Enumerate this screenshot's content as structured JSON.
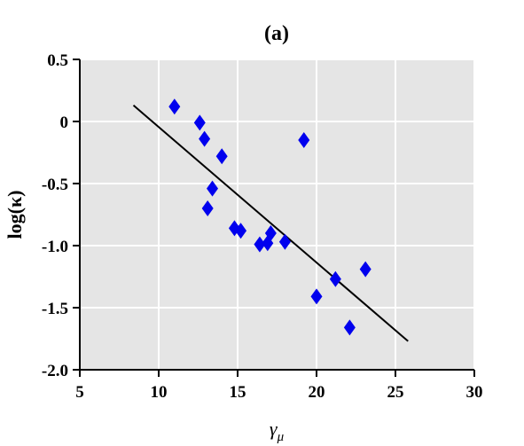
{
  "chart_data": {
    "type": "scatter",
    "title": "(a)",
    "xlabel": "γμ",
    "xlabel_main": "γ",
    "xlabel_sub": "μ",
    "ylabel": "log(κ)",
    "xlim": [
      5,
      30
    ],
    "ylim": [
      -2.0,
      0.5
    ],
    "x_ticks": [
      5,
      10,
      15,
      20,
      25,
      30
    ],
    "x_tick_labels": [
      "5",
      "10",
      "15",
      "20",
      "25",
      "30"
    ],
    "y_ticks": [
      0.5,
      0,
      -0.5,
      -1.0,
      -1.5,
      -2.0
    ],
    "y_tick_labels": [
      "0.5",
      "0",
      "-0.5",
      "-1.0",
      "-1.5",
      "-2.0"
    ],
    "grid": true,
    "background_color": "#e5e5e5",
    "grid_color": "#ffffff",
    "marker": "diamond",
    "marker_color": "#0000ee",
    "points": [
      {
        "x": 11.0,
        "y": 0.12
      },
      {
        "x": 12.6,
        "y": -0.01
      },
      {
        "x": 12.9,
        "y": -0.14
      },
      {
        "x": 14.0,
        "y": -0.28
      },
      {
        "x": 13.4,
        "y": -0.54
      },
      {
        "x": 13.1,
        "y": -0.7
      },
      {
        "x": 14.8,
        "y": -0.86
      },
      {
        "x": 15.2,
        "y": -0.88
      },
      {
        "x": 16.4,
        "y": -0.99
      },
      {
        "x": 16.9,
        "y": -0.98
      },
      {
        "x": 17.1,
        "y": -0.9
      },
      {
        "x": 18.0,
        "y": -0.97
      },
      {
        "x": 19.2,
        "y": -0.15
      },
      {
        "x": 20.0,
        "y": -1.41
      },
      {
        "x": 21.2,
        "y": -1.27
      },
      {
        "x": 22.1,
        "y": -1.66
      },
      {
        "x": 23.1,
        "y": -1.19
      }
    ],
    "fit_line": {
      "x": [
        8.4,
        25.8
      ],
      "y": [
        0.13,
        -1.77
      ],
      "color": "#000000"
    }
  }
}
